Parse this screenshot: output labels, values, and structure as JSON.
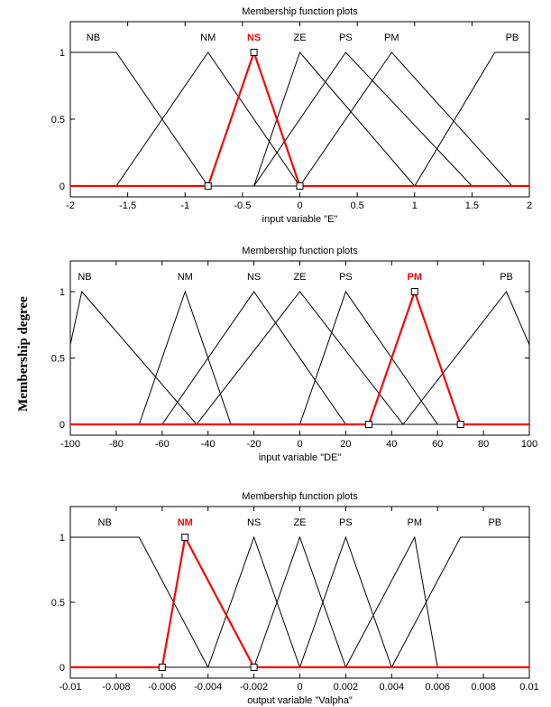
{
  "ylabel": "Membership degree",
  "colors": {
    "selected": "#ff0000",
    "normal": "#000000"
  },
  "chart_data": [
    {
      "type": "line",
      "title": "Membership function plots",
      "xlabel": "input variable \"E\"",
      "xlim": [
        -2,
        2
      ],
      "ylim": [
        0,
        1
      ],
      "xticks": [
        -2,
        -1.5,
        -1,
        -0.5,
        0,
        0.5,
        1,
        1.5,
        2
      ],
      "xtick_labels": [
        "-2",
        "-1.5",
        "-1",
        "-0.5",
        "0",
        "0.5",
        "1",
        "1.5",
        "2"
      ],
      "yticks": [
        0,
        0.5,
        1
      ],
      "ytick_labels": [
        "0",
        "0.5",
        "1"
      ],
      "selected": "NS",
      "series": [
        {
          "name": "NB",
          "x": [
            -2,
            -1.6,
            -0.8
          ],
          "y": [
            1,
            1,
            0
          ]
        },
        {
          "name": "NM",
          "x": [
            -1.6,
            -0.8,
            0
          ],
          "y": [
            0,
            1,
            0
          ]
        },
        {
          "name": "NS",
          "x": [
            -0.8,
            -0.4,
            0
          ],
          "y": [
            0,
            1,
            0
          ]
        },
        {
          "name": "ZE",
          "x": [
            -0.4,
            0,
            1
          ],
          "y": [
            0,
            1,
            0
          ]
        },
        {
          "name": "PS",
          "x": [
            -0.4,
            0.4,
            1.5
          ],
          "y": [
            0,
            1,
            0
          ]
        },
        {
          "name": "PM",
          "x": [
            0,
            0.8,
            1.85
          ],
          "y": [
            0,
            1,
            0
          ]
        },
        {
          "name": "PB",
          "x": [
            1,
            1.7,
            2
          ],
          "y": [
            0,
            1,
            1
          ]
        }
      ]
    },
    {
      "type": "line",
      "title": "Membership function plots",
      "xlabel": "input variable \"DE\"",
      "xlim": [
        -100,
        100
      ],
      "ylim": [
        0,
        1
      ],
      "xticks": [
        -100,
        -80,
        -60,
        -40,
        -20,
        0,
        20,
        40,
        60,
        80,
        100
      ],
      "xtick_labels": [
        "-100",
        "-80",
        "-60",
        "-40",
        "-20",
        "0",
        "20",
        "40",
        "60",
        "80",
        "100"
      ],
      "yticks": [
        0,
        0.5,
        1
      ],
      "ytick_labels": [
        "0",
        "0.5",
        "1"
      ],
      "selected": "PM",
      "series": [
        {
          "name": "NB",
          "x": [
            -100,
            -95,
            -45
          ],
          "y": [
            0.6,
            1,
            0
          ]
        },
        {
          "name": "NM",
          "x": [
            -70,
            -50,
            -30
          ],
          "y": [
            0,
            1,
            0
          ]
        },
        {
          "name": "NS",
          "x": [
            -60,
            -20,
            20
          ],
          "y": [
            0,
            1,
            0
          ]
        },
        {
          "name": "ZE",
          "x": [
            -45,
            0,
            45
          ],
          "y": [
            0,
            1,
            0
          ]
        },
        {
          "name": "PS",
          "x": [
            0,
            20,
            60
          ],
          "y": [
            0,
            1,
            0
          ]
        },
        {
          "name": "PM",
          "x": [
            30,
            50,
            70
          ],
          "y": [
            0,
            1,
            0
          ]
        },
        {
          "name": "PB",
          "x": [
            45,
            90,
            100
          ],
          "y": [
            0,
            1,
            0.6
          ]
        }
      ]
    },
    {
      "type": "line",
      "title": "Membership function plots",
      "xlabel": "output variable \"Valpha\"",
      "xlim": [
        -0.01,
        0.01
      ],
      "ylim": [
        0,
        1
      ],
      "xticks": [
        -0.01,
        -0.008,
        -0.006,
        -0.004,
        -0.002,
        0,
        0.002,
        0.004,
        0.006,
        0.008,
        0.01
      ],
      "xtick_labels": [
        "-0.01",
        "-0.008",
        "-0.006",
        "-0.004",
        "-0.002",
        "0",
        "0.002",
        "0.004",
        "0.006",
        "0.008",
        "0.01"
      ],
      "yticks": [
        0,
        0.5,
        1
      ],
      "ytick_labels": [
        "0",
        "0.5",
        "1"
      ],
      "selected": "NM",
      "series": [
        {
          "name": "NB",
          "x": [
            -0.01,
            -0.007,
            -0.004
          ],
          "y": [
            1,
            1,
            0
          ]
        },
        {
          "name": "NM",
          "x": [
            -0.006,
            -0.005,
            -0.002
          ],
          "y": [
            0,
            1,
            0
          ]
        },
        {
          "name": "NS",
          "x": [
            -0.004,
            -0.002,
            0
          ],
          "y": [
            0,
            1,
            0
          ]
        },
        {
          "name": "ZE",
          "x": [
            -0.002,
            0,
            0.002
          ],
          "y": [
            0,
            1,
            0
          ]
        },
        {
          "name": "PS",
          "x": [
            0,
            0.002,
            0.004
          ],
          "y": [
            0,
            1,
            0
          ]
        },
        {
          "name": "PM",
          "x": [
            0.002,
            0.005,
            0.006
          ],
          "y": [
            0,
            1,
            0
          ]
        },
        {
          "name": "PB",
          "x": [
            0.004,
            0.007,
            0.01
          ],
          "y": [
            0,
            1,
            1
          ]
        }
      ]
    }
  ]
}
